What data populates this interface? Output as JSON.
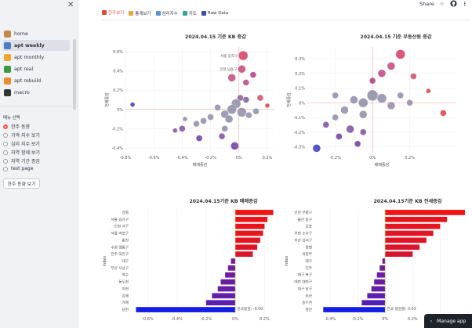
{
  "sidebar": {
    "nav": [
      {
        "label": "home",
        "icon": "house-icon",
        "color": "#c58a4b",
        "active": false
      },
      {
        "label": "apt weekly",
        "icon": "calendar-icon",
        "color": "#4a7fc1",
        "active": true
      },
      {
        "label": "apt monthly",
        "icon": "m-icon",
        "color": "#f0a52e",
        "active": false
      },
      {
        "label": "apt real",
        "icon": "bar-chart-icon",
        "color": "#3c9c3c",
        "active": false
      },
      {
        "label": "apt rebuild",
        "icon": "r-icon",
        "color": "#f08a2e",
        "active": false
      },
      {
        "label": "macro",
        "icon": "globe-icon",
        "color": "#333333",
        "active": false
      }
    ],
    "menu_label": "메뉴 선택",
    "radios": [
      "한주 동향",
      "가격 지수 보기",
      "심리 지수 보기",
      "지역 함께 보기",
      "지역 기간 증감",
      "test page"
    ],
    "selected_radio": 0,
    "button_label": "한주 동향 보기"
  },
  "tabs": [
    {
      "label": "한주보기",
      "icon": "calendar-tab-icon",
      "color": "#e0463c",
      "active": true
    },
    {
      "label": "통계보기",
      "icon": "pencil-icon",
      "color": "#e8a33b",
      "active": false
    },
    {
      "label": "심리지수",
      "icon": "chart-icon",
      "color": "#5c8fd6",
      "active": false
    },
    {
      "label": "지도",
      "icon": "map-icon",
      "color": "#3f9f9a",
      "active": false
    },
    {
      "label": "Raw Data",
      "icon": "table-icon",
      "color": "#3b4f9c",
      "active": false
    }
  ],
  "header": {
    "share": "Share"
  },
  "manage_app": "Manage app",
  "chart_data": [
    {
      "type": "scatter",
      "title": "2024.04.15 기준 KB 증감",
      "xlabel": "매매증감",
      "ylabel": "전세증감",
      "xticks": [
        "-0.8%",
        "-0.6%",
        "-0.4%",
        "-0.2%",
        "0%",
        "0.2%"
      ],
      "yticks": [
        "0.6%",
        "0.4%",
        "0.2%",
        "0%",
        "-0.2%",
        "-0.4%"
      ],
      "xlim": [
        -0.8,
        0.25
      ],
      "ylim": [
        -0.45,
        0.65
      ],
      "points": [
        {
          "x": 0.03,
          "y": 0.56,
          "label": "서울 동작구",
          "c": "#d63a63",
          "s": 6
        },
        {
          "x": 0.02,
          "y": 0.42,
          "label": "인천 남동구",
          "c": "#c5467a",
          "s": 5
        },
        {
          "x": 0.1,
          "y": 0.36,
          "label": "",
          "c": "#a93d86",
          "s": 4
        },
        {
          "x": -0.05,
          "y": 0.33,
          "label": "",
          "c": "#c04a7e",
          "s": 5
        },
        {
          "x": 0.05,
          "y": 0.28,
          "label": "",
          "c": "#b84580",
          "s": 4
        },
        {
          "x": 0.01,
          "y": 0.12,
          "label": "",
          "c": "#8a5a9a",
          "s": 4
        },
        {
          "x": 0.05,
          "y": 0.1,
          "label": "",
          "c": "#7e5c9c",
          "s": 4
        },
        {
          "x": 0.15,
          "y": 0.12,
          "label": "",
          "c": "#cc4b6a",
          "s": 4
        },
        {
          "x": 0.2,
          "y": 0.04,
          "label": "",
          "c": "#d8404d",
          "s": 3
        },
        {
          "x": -0.02,
          "y": 0.06,
          "label": "",
          "c": "#8d8ca6",
          "s": 6
        },
        {
          "x": -0.05,
          "y": 0.0,
          "label": "",
          "c": "#8d8ca6",
          "s": 6
        },
        {
          "x": 0.02,
          "y": -0.03,
          "label": "",
          "c": "#8d8ca6",
          "s": 6
        },
        {
          "x": -0.1,
          "y": -0.05,
          "label": "",
          "c": "#8d8ca6",
          "s": 5
        },
        {
          "x": -0.15,
          "y": 0.02,
          "label": "",
          "c": "#8d8ca6",
          "s": 4
        },
        {
          "x": -0.2,
          "y": -0.08,
          "label": "",
          "c": "#8d8ca6",
          "s": 4
        },
        {
          "x": -0.25,
          "y": -0.12,
          "label": "",
          "c": "#8d8ca6",
          "s": 4
        },
        {
          "x": -0.3,
          "y": -0.15,
          "label": "",
          "c": "#8d8ca6",
          "s": 4
        },
        {
          "x": -0.07,
          "y": -0.1,
          "label": "",
          "c": "#8d8ca6",
          "s": 5
        },
        {
          "x": 0.07,
          "y": -0.06,
          "label": "",
          "c": "#8d8ca6",
          "s": 4
        },
        {
          "x": 0.12,
          "y": -0.02,
          "label": "",
          "c": "#8d8ca6",
          "s": 4
        },
        {
          "x": -0.4,
          "y": -0.2,
          "label": "",
          "c": "#7a4f9e",
          "s": 4
        },
        {
          "x": -0.45,
          "y": -0.22,
          "label": "",
          "c": "#7a4f9e",
          "s": 3
        },
        {
          "x": -0.1,
          "y": -0.2,
          "label": "",
          "c": "#8d8ca6",
          "s": 4
        },
        {
          "x": -0.12,
          "y": -0.28,
          "label": "",
          "c": "#7a4f9e",
          "s": 4
        },
        {
          "x": -0.28,
          "y": -0.3,
          "label": "",
          "c": "#6a3aa0",
          "s": 4
        },
        {
          "x": -0.03,
          "y": -0.38,
          "label": "",
          "c": "#6a3aa0",
          "s": 5
        },
        {
          "x": -0.75,
          "y": 0.05,
          "label": "",
          "c": "#3636b8",
          "s": 3
        },
        {
          "x": -0.38,
          "y": -0.1,
          "label": "",
          "c": "#8d8ca6",
          "s": 3
        }
      ]
    },
    {
      "type": "scatter",
      "title": "2024.04.15 기준 부동산원 증감",
      "xlabel": "매매증감",
      "ylabel": "전세증감",
      "xticks": [
        "-0.2%",
        "0%",
        "0.2%"
      ],
      "yticks": [
        "0.3%",
        "0.2%",
        "0.1%",
        "0%",
        "-0.1%",
        "-0.2%",
        "-0.3%"
      ],
      "xlim": [
        -0.35,
        0.45
      ],
      "ylim": [
        -0.34,
        0.38
      ],
      "points": [
        {
          "x": 0.15,
          "y": 0.33,
          "label": "",
          "c": "#d63a63",
          "s": 6
        },
        {
          "x": 0.1,
          "y": 0.25,
          "label": "",
          "c": "#c5467a",
          "s": 5
        },
        {
          "x": 0.05,
          "y": 0.2,
          "label": "",
          "c": "#b84580",
          "s": 5
        },
        {
          "x": 0.22,
          "y": 0.18,
          "label": "",
          "c": "#cc4b6a",
          "s": 4
        },
        {
          "x": 0.0,
          "y": 0.15,
          "label": "",
          "c": "#a93d86",
          "s": 4
        },
        {
          "x": 0.3,
          "y": 0.08,
          "label": "",
          "c": "#d8404d",
          "s": 3
        },
        {
          "x": 0.38,
          "y": -0.07,
          "label": "",
          "c": "#d8404d",
          "s": 4
        },
        {
          "x": 0.0,
          "y": 0.05,
          "label": "",
          "c": "#8d8ca6",
          "s": 7
        },
        {
          "x": 0.05,
          "y": 0.03,
          "label": "",
          "c": "#8d8ca6",
          "s": 6
        },
        {
          "x": -0.05,
          "y": 0.0,
          "label": "",
          "c": "#8d8ca6",
          "s": 6
        },
        {
          "x": 0.1,
          "y": -0.02,
          "label": "",
          "c": "#8d8ca6",
          "s": 5
        },
        {
          "x": -0.1,
          "y": 0.02,
          "label": "",
          "c": "#8d8ca6",
          "s": 5
        },
        {
          "x": -0.15,
          "y": -0.05,
          "label": "",
          "c": "#8d8ca6",
          "s": 5
        },
        {
          "x": -0.05,
          "y": -0.08,
          "label": "",
          "c": "#8d8ca6",
          "s": 5
        },
        {
          "x": 0.15,
          "y": 0.05,
          "label": "",
          "c": "#8d8ca6",
          "s": 4
        },
        {
          "x": 0.2,
          "y": 0.0,
          "label": "",
          "c": "#8d8ca6",
          "s": 4
        },
        {
          "x": -0.2,
          "y": -0.1,
          "label": "",
          "c": "#8d8ca6",
          "s": 4
        },
        {
          "x": -0.2,
          "y": 0.05,
          "label": "",
          "c": "#8d8ca6",
          "s": 4
        },
        {
          "x": -0.25,
          "y": -0.15,
          "label": "",
          "c": "#7a4f9e",
          "s": 4
        },
        {
          "x": -0.12,
          "y": -0.18,
          "label": "",
          "c": "#7a4f9e",
          "s": 5
        },
        {
          "x": -0.05,
          "y": -0.2,
          "label": "",
          "c": "#7a4f9e",
          "s": 4
        },
        {
          "x": -0.18,
          "y": -0.23,
          "label": "",
          "c": "#6a3aa0",
          "s": 4
        },
        {
          "x": -0.08,
          "y": -0.28,
          "label": "",
          "c": "#6a3aa0",
          "s": 4
        },
        {
          "x": -0.3,
          "y": -0.31,
          "label": "",
          "c": "#3a3ac0",
          "s": 5
        }
      ]
    },
    {
      "type": "bar",
      "title": "2024.04.15기준 KB 매매증감",
      "xlabel": "",
      "ylabel": "index",
      "xticks": [
        "-0.6%",
        "-0.4%",
        "-0.2%",
        "0%",
        "0.2%"
      ],
      "xlim": [
        -0.72,
        0.3
      ],
      "categories": [
        "강화",
        "서울 용산구",
        "인천 서구",
        "서울 마포구",
        "춘천",
        "수원 영통구",
        "전주 덕진구",
        "대구",
        "부산 사상구",
        "여수",
        "동두천",
        "이천",
        "김해",
        "거제",
        "남천"
      ],
      "values": [
        0.26,
        0.22,
        0.2,
        0.19,
        0.17,
        0.15,
        0.12,
        -0.03,
        -0.05,
        -0.07,
        -0.1,
        -0.12,
        -0.16,
        -0.2,
        -0.68
      ],
      "ref_label": "전국증감: -0.00"
    },
    {
      "type": "bar",
      "title": "2024.04.15기준 KB 전세증감",
      "xlabel": "",
      "ylabel": "index",
      "xticks": [
        "-0.4%",
        "-0.2%",
        "0%",
        "0.2%",
        "0.4%"
      ],
      "xlim": [
        -0.52,
        0.62
      ],
      "categories": [
        "인천 부평구",
        "울산 동구",
        "김포",
        "부천 소사구",
        "부산 강서구",
        "광명",
        "의정부",
        "대구",
        "진주",
        "대구 북구",
        "대전 대덕구",
        "대구 남구",
        "이산",
        "동두천",
        "경산"
      ],
      "values": [
        0.58,
        0.45,
        0.4,
        0.35,
        0.3,
        0.25,
        0.2,
        -0.02,
        -0.04,
        -0.06,
        -0.08,
        -0.1,
        -0.13,
        -0.17,
        -0.45
      ],
      "ref_label": "전국 증감률: 0.03"
    }
  ]
}
